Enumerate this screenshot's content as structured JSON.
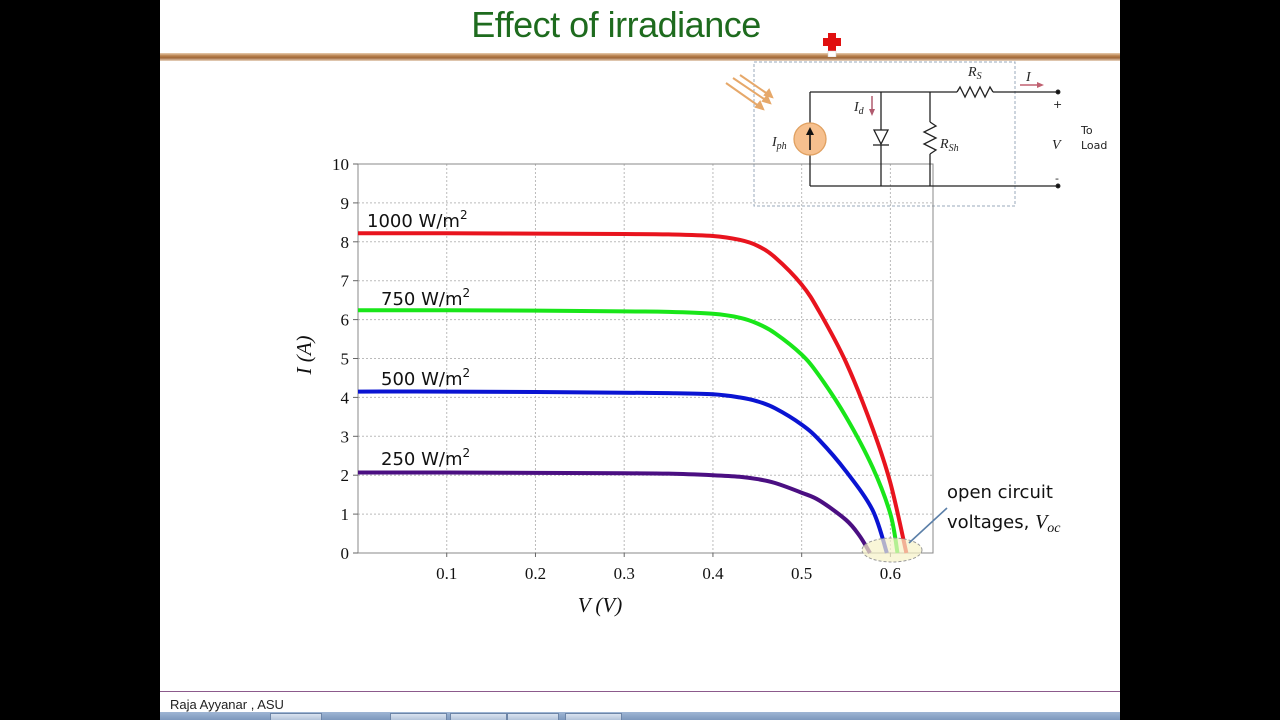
{
  "slide": {
    "title": "Effect of irradiance",
    "footer": "Raja Ayyanar , ASU"
  },
  "circuit": {
    "labels": {
      "rs": "R",
      "rs_sub": "S",
      "rsh": "R",
      "rsh_sub": "Sh",
      "iph": "I",
      "iph_sub": "ph",
      "id": "I",
      "id_sub": "d",
      "i_out": "I",
      "v": "V",
      "plus": "+",
      "minus": "-",
      "to": "To",
      "load": "Load"
    }
  },
  "annotation": {
    "line1": "open circuit",
    "line2": "voltages, ",
    "voc": "V",
    "voc_sub": "oc"
  },
  "chart_data": {
    "type": "line",
    "title": "Effect of irradiance",
    "xlabel": "V (V)",
    "ylabel": "I (A)",
    "xlim": [
      0,
      0.648
    ],
    "ylim": [
      0,
      10
    ],
    "xticks": [
      "0.1",
      "0.2",
      "0.3",
      "0.4",
      "0.5",
      "0.6"
    ],
    "xtick_values": [
      0.1,
      0.2,
      0.3,
      0.4,
      0.5,
      0.6
    ],
    "yticks": [
      "0",
      "1",
      "2",
      "3",
      "4",
      "5",
      "6",
      "7",
      "8",
      "9",
      "10"
    ],
    "ytick_values": [
      0,
      1,
      2,
      3,
      4,
      5,
      6,
      7,
      8,
      9,
      10
    ],
    "grid": true,
    "series": [
      {
        "name": "1000 W/m2",
        "label": "1000 W/m",
        "label_sup": "2",
        "color": "#e8141e",
        "isc": 8.22,
        "voc": 0.618,
        "points": [
          [
            0,
            8.22
          ],
          [
            0.1,
            8.22
          ],
          [
            0.2,
            8.21
          ],
          [
            0.3,
            8.2
          ],
          [
            0.35,
            8.19
          ],
          [
            0.4,
            8.15
          ],
          [
            0.43,
            8.05
          ],
          [
            0.45,
            7.9
          ],
          [
            0.47,
            7.6
          ],
          [
            0.5,
            6.9
          ],
          [
            0.52,
            6.2
          ],
          [
            0.55,
            4.9
          ],
          [
            0.58,
            3.2
          ],
          [
            0.6,
            1.8
          ],
          [
            0.618,
            0
          ]
        ]
      },
      {
        "name": "750 W/m2",
        "label": "750 W/m",
        "label_sup": "2",
        "color": "#19e619",
        "isc": 6.24,
        "voc": 0.608,
        "points": [
          [
            0,
            6.24
          ],
          [
            0.1,
            6.24
          ],
          [
            0.2,
            6.23
          ],
          [
            0.3,
            6.21
          ],
          [
            0.35,
            6.2
          ],
          [
            0.4,
            6.15
          ],
          [
            0.43,
            6.05
          ],
          [
            0.45,
            5.9
          ],
          [
            0.47,
            5.65
          ],
          [
            0.5,
            5.1
          ],
          [
            0.52,
            4.55
          ],
          [
            0.55,
            3.5
          ],
          [
            0.58,
            2.2
          ],
          [
            0.6,
            1.0
          ],
          [
            0.608,
            0
          ]
        ]
      },
      {
        "name": "500 W/m2",
        "label": "500 W/m",
        "label_sup": "2",
        "color": "#0a14d2",
        "isc": 4.15,
        "voc": 0.596,
        "points": [
          [
            0,
            4.15
          ],
          [
            0.1,
            4.15
          ],
          [
            0.2,
            4.14
          ],
          [
            0.3,
            4.12
          ],
          [
            0.35,
            4.11
          ],
          [
            0.4,
            4.08
          ],
          [
            0.43,
            4.0
          ],
          [
            0.45,
            3.9
          ],
          [
            0.47,
            3.72
          ],
          [
            0.5,
            3.3
          ],
          [
            0.52,
            2.9
          ],
          [
            0.55,
            2.1
          ],
          [
            0.58,
            1.1
          ],
          [
            0.596,
            0
          ]
        ]
      },
      {
        "name": "250 W/m2",
        "label": "250 W/m",
        "label_sup": "2",
        "color": "#4b0f82",
        "isc": 2.07,
        "voc": 0.577,
        "points": [
          [
            0,
            2.07
          ],
          [
            0.1,
            2.07
          ],
          [
            0.2,
            2.06
          ],
          [
            0.3,
            2.05
          ],
          [
            0.35,
            2.04
          ],
          [
            0.4,
            2.0
          ],
          [
            0.43,
            1.96
          ],
          [
            0.45,
            1.9
          ],
          [
            0.47,
            1.8
          ],
          [
            0.5,
            1.55
          ],
          [
            0.52,
            1.35
          ],
          [
            0.55,
            0.85
          ],
          [
            0.565,
            0.45
          ],
          [
            0.577,
            0
          ]
        ]
      }
    ]
  },
  "taskbar": {
    "colors": {
      "bar": "#8aa3c6"
    }
  }
}
